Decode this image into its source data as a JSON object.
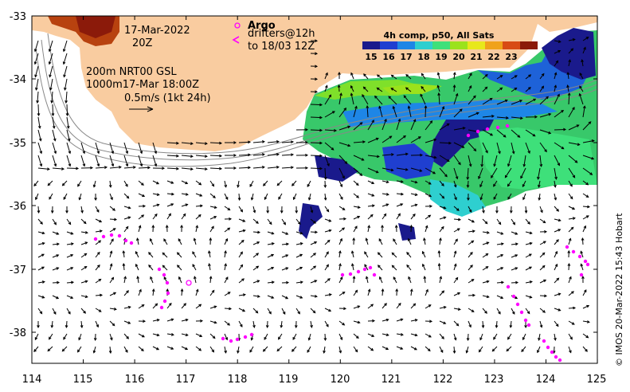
{
  "map": {
    "lon_ticks": [
      "114",
      "115",
      "116",
      "117",
      "118",
      "119",
      "120",
      "121",
      "122",
      "123",
      "124",
      "125"
    ],
    "lat_ticks": [
      "-33",
      "-34",
      "-35",
      "-36",
      "-37",
      "-38"
    ],
    "date_line1": "17-Mar-2022",
    "date_line2": "20Z",
    "isobath_line1": "200m  NRT00 GSL",
    "isobath_line2": "1000m17-Mar 18:00Z",
    "scale_label": "0.5m/s (1kt 24h)",
    "argo_label": "Argo",
    "drifters_label": "drifters@12h",
    "drifters_to": "to 18/03 12Z",
    "credit": "© IMOS 20-Mar-2022 15:43 Hobart"
  },
  "colorbar": {
    "title": "4h comp, p50, All Sats",
    "ticks": [
      "15",
      "16",
      "17",
      "18",
      "19",
      "20",
      "21",
      "22",
      "23"
    ],
    "colors": [
      "#1a1a8c",
      "#1f3fd0",
      "#1e86e6",
      "#2ecfcf",
      "#3ee07a",
      "#9be21c",
      "#e8e81a",
      "#f0a21a",
      "#d84b14",
      "#8b1a0a"
    ]
  },
  "colors": {
    "land": "#f9cca0",
    "drifter": "#ff00ff",
    "arrow": "#000000",
    "contour": "#888888"
  }
}
